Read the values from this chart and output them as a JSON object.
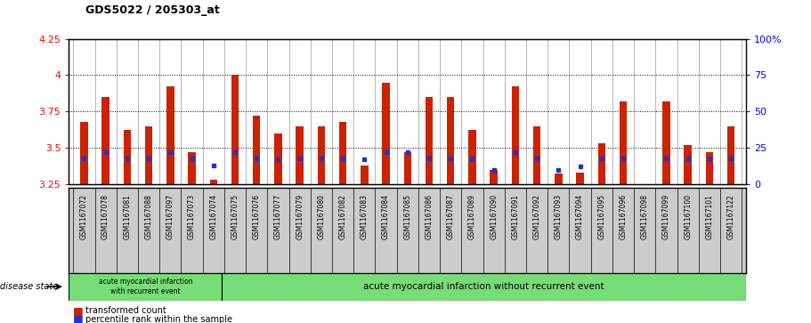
{
  "title": "GDS5022 / 205303_at",
  "samples": [
    "GSM1167072",
    "GSM1167078",
    "GSM1167081",
    "GSM1167088",
    "GSM1167097",
    "GSM1167073",
    "GSM1167074",
    "GSM1167075",
    "GSM1167076",
    "GSM1167077",
    "GSM1167079",
    "GSM1167080",
    "GSM1167082",
    "GSM1167083",
    "GSM1167084",
    "GSM1167085",
    "GSM1167086",
    "GSM1167087",
    "GSM1167089",
    "GSM1167090",
    "GSM1167091",
    "GSM1167092",
    "GSM1167093",
    "GSM1167094",
    "GSM1167095",
    "GSM1167096",
    "GSM1167098",
    "GSM1167099",
    "GSM1167100",
    "GSM1167101",
    "GSM1167122"
  ],
  "red_values": [
    3.68,
    3.85,
    3.62,
    3.65,
    3.92,
    3.47,
    3.28,
    4.0,
    3.72,
    3.6,
    3.65,
    3.65,
    3.68,
    3.38,
    3.95,
    3.47,
    3.85,
    3.85,
    3.62,
    3.35,
    3.92,
    3.65,
    3.32,
    3.33,
    3.53,
    3.82,
    3.22,
    3.82,
    3.52,
    3.47,
    3.65
  ],
  "blue_values": [
    3.43,
    3.47,
    3.43,
    3.43,
    3.47,
    3.43,
    3.38,
    3.47,
    3.43,
    3.42,
    3.43,
    3.43,
    3.43,
    3.42,
    3.47,
    3.47,
    3.43,
    3.43,
    3.43,
    3.35,
    3.47,
    3.43,
    3.35,
    3.37,
    3.43,
    3.43,
    3.22,
    3.43,
    3.43,
    3.43,
    3.43
  ],
  "group1_count": 7,
  "group1_label": "acute myocardial infarction\nwith recurrent event",
  "group2_label": "acute myocardial infarction without recurrent event",
  "disease_state_label": "disease state",
  "legend_red": "transformed count",
  "legend_blue": "percentile rank within the sample",
  "ymin": 3.25,
  "ymax": 4.25,
  "yticks": [
    3.25,
    3.5,
    3.75,
    4.0,
    4.25
  ],
  "ytick_labels": [
    "3.25",
    "3.5",
    "3.75",
    "4",
    "4.25"
  ],
  "y2ticks": [
    0,
    25,
    50,
    75,
    100
  ],
  "y2tick_labels": [
    "0",
    "25",
    "50",
    "75",
    "100%"
  ],
  "bar_color": "#CC2200",
  "dot_color": "#2233CC",
  "group1_bg": "#77DD77",
  "group2_bg": "#77DD77",
  "plot_bg": "#FFFFFF",
  "tick_bg": "#CCCCCC",
  "grid_color": "#000000"
}
